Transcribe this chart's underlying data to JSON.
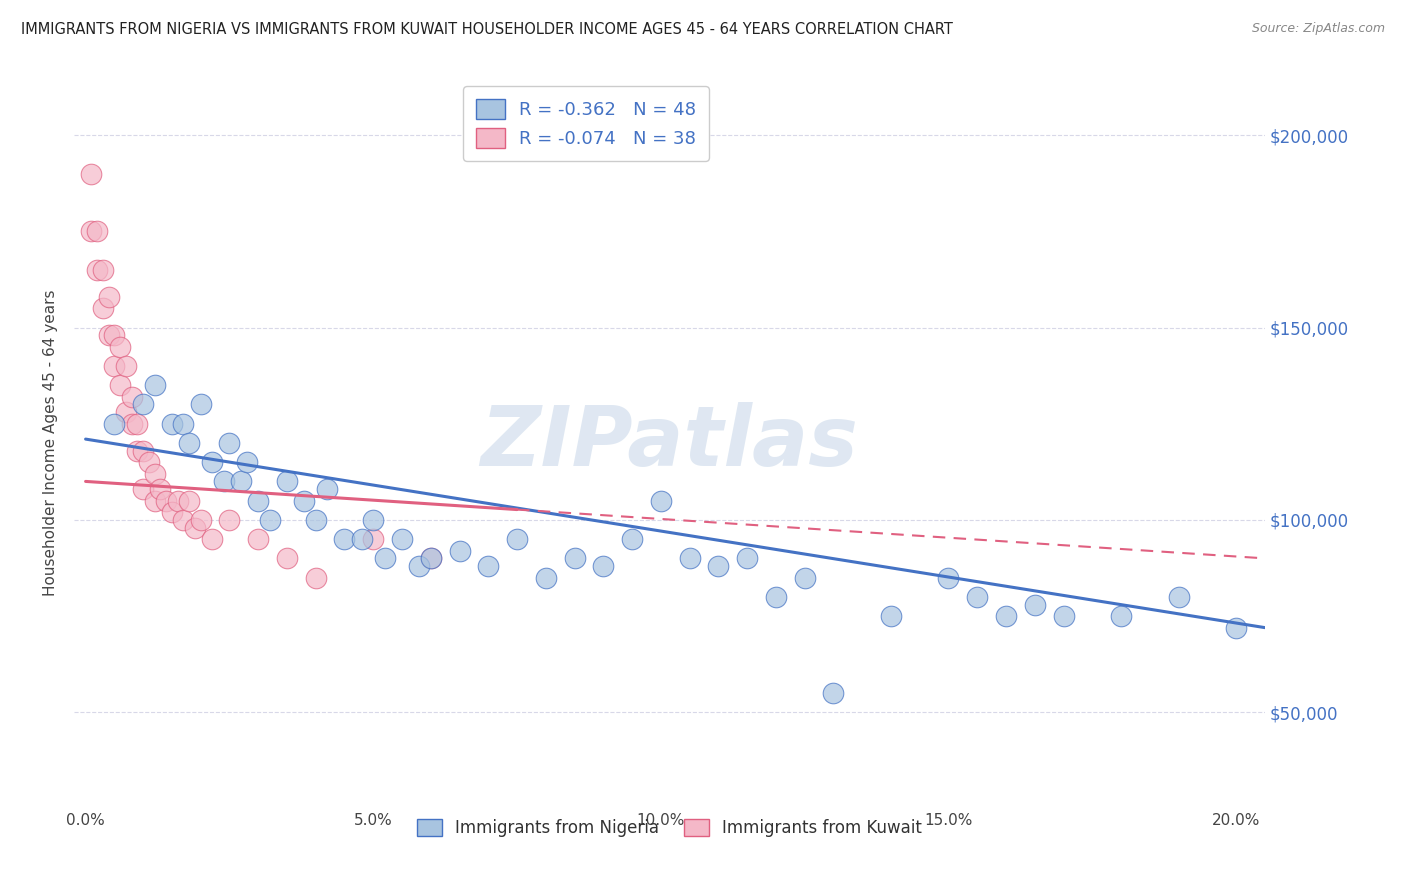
{
  "title": "IMMIGRANTS FROM NIGERIA VS IMMIGRANTS FROM KUWAIT HOUSEHOLDER INCOME AGES 45 - 64 YEARS CORRELATION CHART",
  "source": "Source: ZipAtlas.com",
  "ylabel": "Householder Income Ages 45 - 64 years",
  "xlabel_ticks": [
    "0.0%",
    "5.0%",
    "10.0%",
    "15.0%",
    "20.0%"
  ],
  "xlabel_vals": [
    0.0,
    0.05,
    0.1,
    0.15,
    0.2
  ],
  "ylabel_ticks": [
    "$50,000",
    "$100,000",
    "$150,000",
    "$200,000"
  ],
  "ylabel_vals": [
    50000,
    100000,
    150000,
    200000
  ],
  "xlim": [
    -0.002,
    0.205
  ],
  "ylim": [
    25000,
    215000
  ],
  "nigeria_R": -0.362,
  "nigeria_N": 48,
  "kuwait_R": -0.074,
  "kuwait_N": 38,
  "nigeria_color": "#a8c4e0",
  "kuwait_color": "#f4b8c8",
  "nigeria_line_color": "#4472c4",
  "kuwait_line_color": "#e06080",
  "nigeria_scatter_x": [
    0.005,
    0.01,
    0.012,
    0.015,
    0.017,
    0.018,
    0.02,
    0.022,
    0.024,
    0.025,
    0.027,
    0.028,
    0.03,
    0.032,
    0.035,
    0.038,
    0.04,
    0.042,
    0.045,
    0.048,
    0.05,
    0.052,
    0.055,
    0.058,
    0.06,
    0.065,
    0.07,
    0.075,
    0.08,
    0.085,
    0.09,
    0.095,
    0.1,
    0.105,
    0.11,
    0.115,
    0.12,
    0.125,
    0.13,
    0.14,
    0.15,
    0.155,
    0.16,
    0.165,
    0.17,
    0.18,
    0.19,
    0.2
  ],
  "nigeria_scatter_y": [
    125000,
    130000,
    135000,
    125000,
    125000,
    120000,
    130000,
    115000,
    110000,
    120000,
    110000,
    115000,
    105000,
    100000,
    110000,
    105000,
    100000,
    108000,
    95000,
    95000,
    100000,
    90000,
    95000,
    88000,
    90000,
    92000,
    88000,
    95000,
    85000,
    90000,
    88000,
    95000,
    105000,
    90000,
    88000,
    90000,
    80000,
    85000,
    55000,
    75000,
    85000,
    80000,
    75000,
    78000,
    75000,
    75000,
    80000,
    72000
  ],
  "kuwait_scatter_x": [
    0.001,
    0.001,
    0.002,
    0.002,
    0.003,
    0.003,
    0.004,
    0.004,
    0.005,
    0.005,
    0.006,
    0.006,
    0.007,
    0.007,
    0.008,
    0.008,
    0.009,
    0.009,
    0.01,
    0.01,
    0.011,
    0.012,
    0.012,
    0.013,
    0.014,
    0.015,
    0.016,
    0.017,
    0.018,
    0.019,
    0.02,
    0.022,
    0.025,
    0.03,
    0.035,
    0.04,
    0.05,
    0.06
  ],
  "kuwait_scatter_y": [
    190000,
    175000,
    165000,
    175000,
    155000,
    165000,
    148000,
    158000,
    140000,
    148000,
    135000,
    145000,
    128000,
    140000,
    125000,
    132000,
    118000,
    125000,
    118000,
    108000,
    115000,
    112000,
    105000,
    108000,
    105000,
    102000,
    105000,
    100000,
    105000,
    98000,
    100000,
    95000,
    100000,
    95000,
    90000,
    85000,
    95000,
    90000
  ],
  "watermark": "ZIPatlas",
  "background_color": "#ffffff",
  "grid_color": "#d8d8e8"
}
